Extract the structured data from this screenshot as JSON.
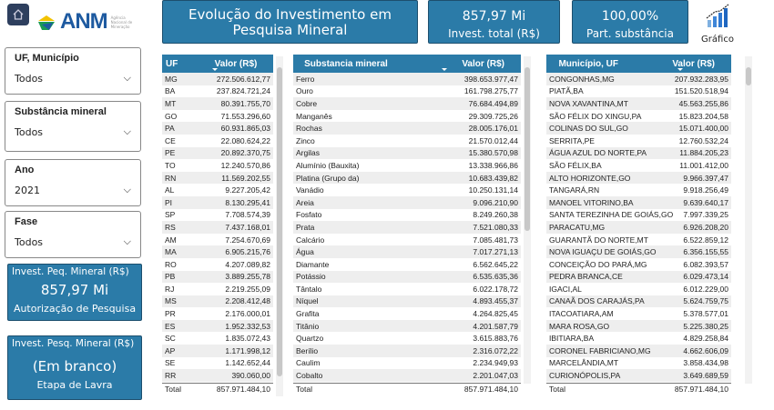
{
  "header": {
    "home_icon": "home-icon",
    "logo_text": "ANM",
    "logo_subtitle": "Agência Nacional de Mineração",
    "title": "Evolução do Investimento em Pesquisa Mineral",
    "kpi1_value": "857,97 Mi",
    "kpi1_label": "Invest.  total (R$)",
    "kpi2_value": "100,00%",
    "kpi2_label": "Part. substância",
    "chart_button_label": "Gráfico",
    "chart_icon": "bar-chart-trend-icon"
  },
  "filters": [
    {
      "label": "UF, Município",
      "value": "Todos"
    },
    {
      "label": "Substância mineral",
      "value": "Todos"
    },
    {
      "label": "Ano",
      "value": "2021"
    },
    {
      "label": "Fase",
      "value": "Todos"
    }
  ],
  "cards": [
    {
      "title": "Invest. Peq. Mineral (R$)",
      "value": "857,97 Mi",
      "subtitle": "Autorização de Pesquisa"
    },
    {
      "title": "Invest. Pesq. Mineral (R$)",
      "value": "(Em branco)",
      "subtitle": "Etapa de Lavra"
    }
  ],
  "colors": {
    "accent": "#2b7ba8",
    "border": "#1d4f6e",
    "home": "#2e3f5e"
  },
  "tables": {
    "uf": {
      "headers": [
        "UF",
        "Valor (R$)"
      ],
      "total_label": "Total",
      "total": "857.971.484,10",
      "rows": [
        [
          "MG",
          "272.506.612,77"
        ],
        [
          "BA",
          "237.824.721,24"
        ],
        [
          "MT",
          "80.391.755,70"
        ],
        [
          "GO",
          "71.553.296,60"
        ],
        [
          "PA",
          "60.931.865,03"
        ],
        [
          "CE",
          "22.080.624,22"
        ],
        [
          "PE",
          "20.892.370,75"
        ],
        [
          "TO",
          "12.240.570,86"
        ],
        [
          "RN",
          "11.569.202,55"
        ],
        [
          "AL",
          "9.227.205,42"
        ],
        [
          "PI",
          "8.130.295,41"
        ],
        [
          "SP",
          "7.708.574,39"
        ],
        [
          "RS",
          "7.437.168,01"
        ],
        [
          "AM",
          "7.254.670,69"
        ],
        [
          "MA",
          "6.905.215,76"
        ],
        [
          "RO",
          "4.207.089,82"
        ],
        [
          "PB",
          "3.889.255,78"
        ],
        [
          "RJ",
          "2.219.255,09"
        ],
        [
          "MS",
          "2.208.412,48"
        ],
        [
          "PR",
          "2.176.000,01"
        ],
        [
          "ES",
          "1.952.332,53"
        ],
        [
          "SC",
          "1.835.072,43"
        ],
        [
          "AP",
          "1.171.998,12"
        ],
        [
          "SE",
          "1.142.652,44"
        ],
        [
          "RR",
          "390.060,00"
        ]
      ]
    },
    "substancia": {
      "headers": [
        "Substancia mineral",
        "Valor (R$)"
      ],
      "total_label": "Total",
      "total": "857.971.484,10",
      "rows": [
        [
          "Ferro",
          "398.653.977,47"
        ],
        [
          "Ouro",
          "161.798.275,77"
        ],
        [
          "Cobre",
          "76.684.494,89"
        ],
        [
          "Manganês",
          "29.309.725,26"
        ],
        [
          "Rochas",
          "28.005.176,01"
        ],
        [
          "Zinco",
          "21.570.012,44"
        ],
        [
          "Argilas",
          "15.380.570,98"
        ],
        [
          "Alumínio (Bauxita)",
          "13.338.966,86"
        ],
        [
          "Platina (Grupo da)",
          "10.683.439,82"
        ],
        [
          "Vanádio",
          "10.250.131,14"
        ],
        [
          "Areia",
          "9.096.210,90"
        ],
        [
          "Fosfato",
          "8.249.260,38"
        ],
        [
          "Prata",
          "7.521.080,33"
        ],
        [
          "Calcário",
          "7.085.481,73"
        ],
        [
          "Água",
          "7.017.271,13"
        ],
        [
          "Diamante",
          "6.562.645,22"
        ],
        [
          "Potássio",
          "6.535.635,36"
        ],
        [
          "Tântalo",
          "6.022.178,72"
        ],
        [
          "Níquel",
          "4.893.455,37"
        ],
        [
          "Grafita",
          "4.264.825,45"
        ],
        [
          "Titânio",
          "4.201.587,79"
        ],
        [
          "Quartzo",
          "3.615.883,76"
        ],
        [
          "Berílio",
          "2.316.072,22"
        ],
        [
          "Caulim",
          "2.234.949,93"
        ],
        [
          "Cobalto",
          "2.201.047,03"
        ]
      ]
    },
    "municipio": {
      "headers": [
        "Município, UF",
        "Valor (R$)"
      ],
      "total_label": "Total",
      "total": "857.971.484,10",
      "rows": [
        [
          "CONGONHAS,MG",
          "207.932.283,95"
        ],
        [
          "PIATÃ,BA",
          "151.520.518,94"
        ],
        [
          "NOVA XAVANTINA,MT",
          "45.563.255,86"
        ],
        [
          "SÃO FÉLIX DO XINGU,PA",
          "15.823.204,58"
        ],
        [
          "COLINAS DO SUL,GO",
          "15.071.400,00"
        ],
        [
          "SERRITA,PE",
          "12.760.532,24"
        ],
        [
          "ÁGUA AZUL DO NORTE,PA",
          "11.884.205,23"
        ],
        [
          "SÃO FÉLIX,BA",
          "11.001.412,00"
        ],
        [
          "ALTO HORIZONTE,GO",
          "9.966.397,47"
        ],
        [
          "TANGARÁ,RN",
          "9.918.256,49"
        ],
        [
          "MANOEL VITORINO,BA",
          "9.639.640,17"
        ],
        [
          "SANTA TEREZINHA DE GOIÁS,GO",
          "7.997.339,25"
        ],
        [
          "PARACATU,MG",
          "6.926.208,20"
        ],
        [
          "GUARANTÃ DO NORTE,MT",
          "6.522.859,12"
        ],
        [
          "NOVA IGUAÇU DE GOIÁS,GO",
          "6.356.155,55"
        ],
        [
          "CONCEIÇÃO DO PARÁ,MG",
          "6.082.393,57"
        ],
        [
          "PEDRA BRANCA,CE",
          "6.029.473,14"
        ],
        [
          "IGACI,AL",
          "6.012.229,00"
        ],
        [
          "CANAÃ DOS CARAJÁS,PA",
          "5.624.759,75"
        ],
        [
          "ITACOATIARA,AM",
          "5.378.577,01"
        ],
        [
          "MARA ROSA,GO",
          "5.225.380,25"
        ],
        [
          "IBITIARA,BA",
          "4.829.258,84"
        ],
        [
          "CORONEL FABRICIANO,MG",
          "4.662.606,09"
        ],
        [
          "MARCELÂNDIA,MT",
          "3.858.434,98"
        ],
        [
          "CURIONÓPOLIS,PA",
          "3.649.689,59"
        ]
      ]
    }
  }
}
